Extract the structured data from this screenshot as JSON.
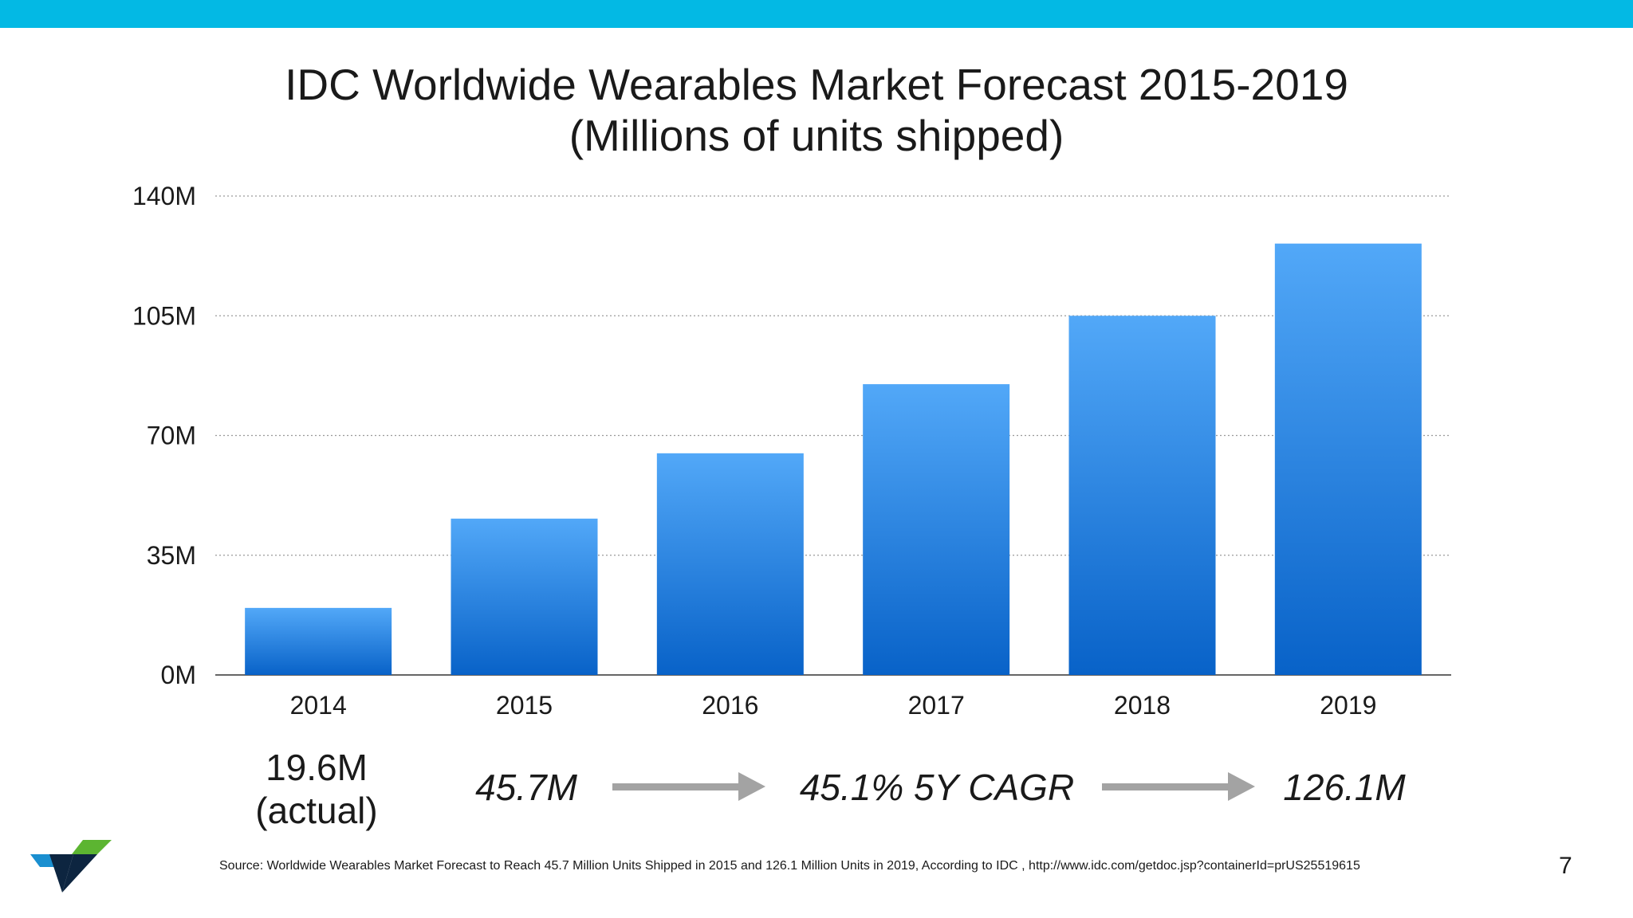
{
  "title_line1": "IDC Worldwide Wearables Market Forecast 2015-2019",
  "title_line2": "(Millions of units shipped)",
  "chart_data": {
    "type": "bar",
    "categories": [
      "2014",
      "2015",
      "2016",
      "2017",
      "2018",
      "2019"
    ],
    "values": [
      19.6,
      45.7,
      64.8,
      85,
      105,
      126.1
    ],
    "yticks": [
      "0M",
      "35M",
      "70M",
      "105M",
      "140M"
    ],
    "ytick_values": [
      0,
      35,
      70,
      105,
      140
    ],
    "ylim": [
      0,
      140
    ],
    "grid": true,
    "colors": {
      "bar_top": "#52a8f8",
      "bar_bottom": "#0862c8"
    }
  },
  "annotations": {
    "actual_value": "19.6M",
    "actual_label": "(actual)",
    "start_value": "45.7M",
    "cagr": "45.1% 5Y CAGR",
    "end_value": "126.1M"
  },
  "source": "Source: Worldwide Wearables Market Forecast to Reach 45.7 Million Units Shipped in 2015 and 126.1 Million Units in 2019, According to IDC , http://www.idc.com/getdoc.jsp?containerId=prUS25519615",
  "page_number": "7",
  "colors": {
    "accent_bar": "#03b9e4",
    "arrow": "#a3a3a3",
    "logo_blue": "#1a8fd0",
    "logo_green": "#5cb531",
    "logo_navy": "#0d2540"
  }
}
